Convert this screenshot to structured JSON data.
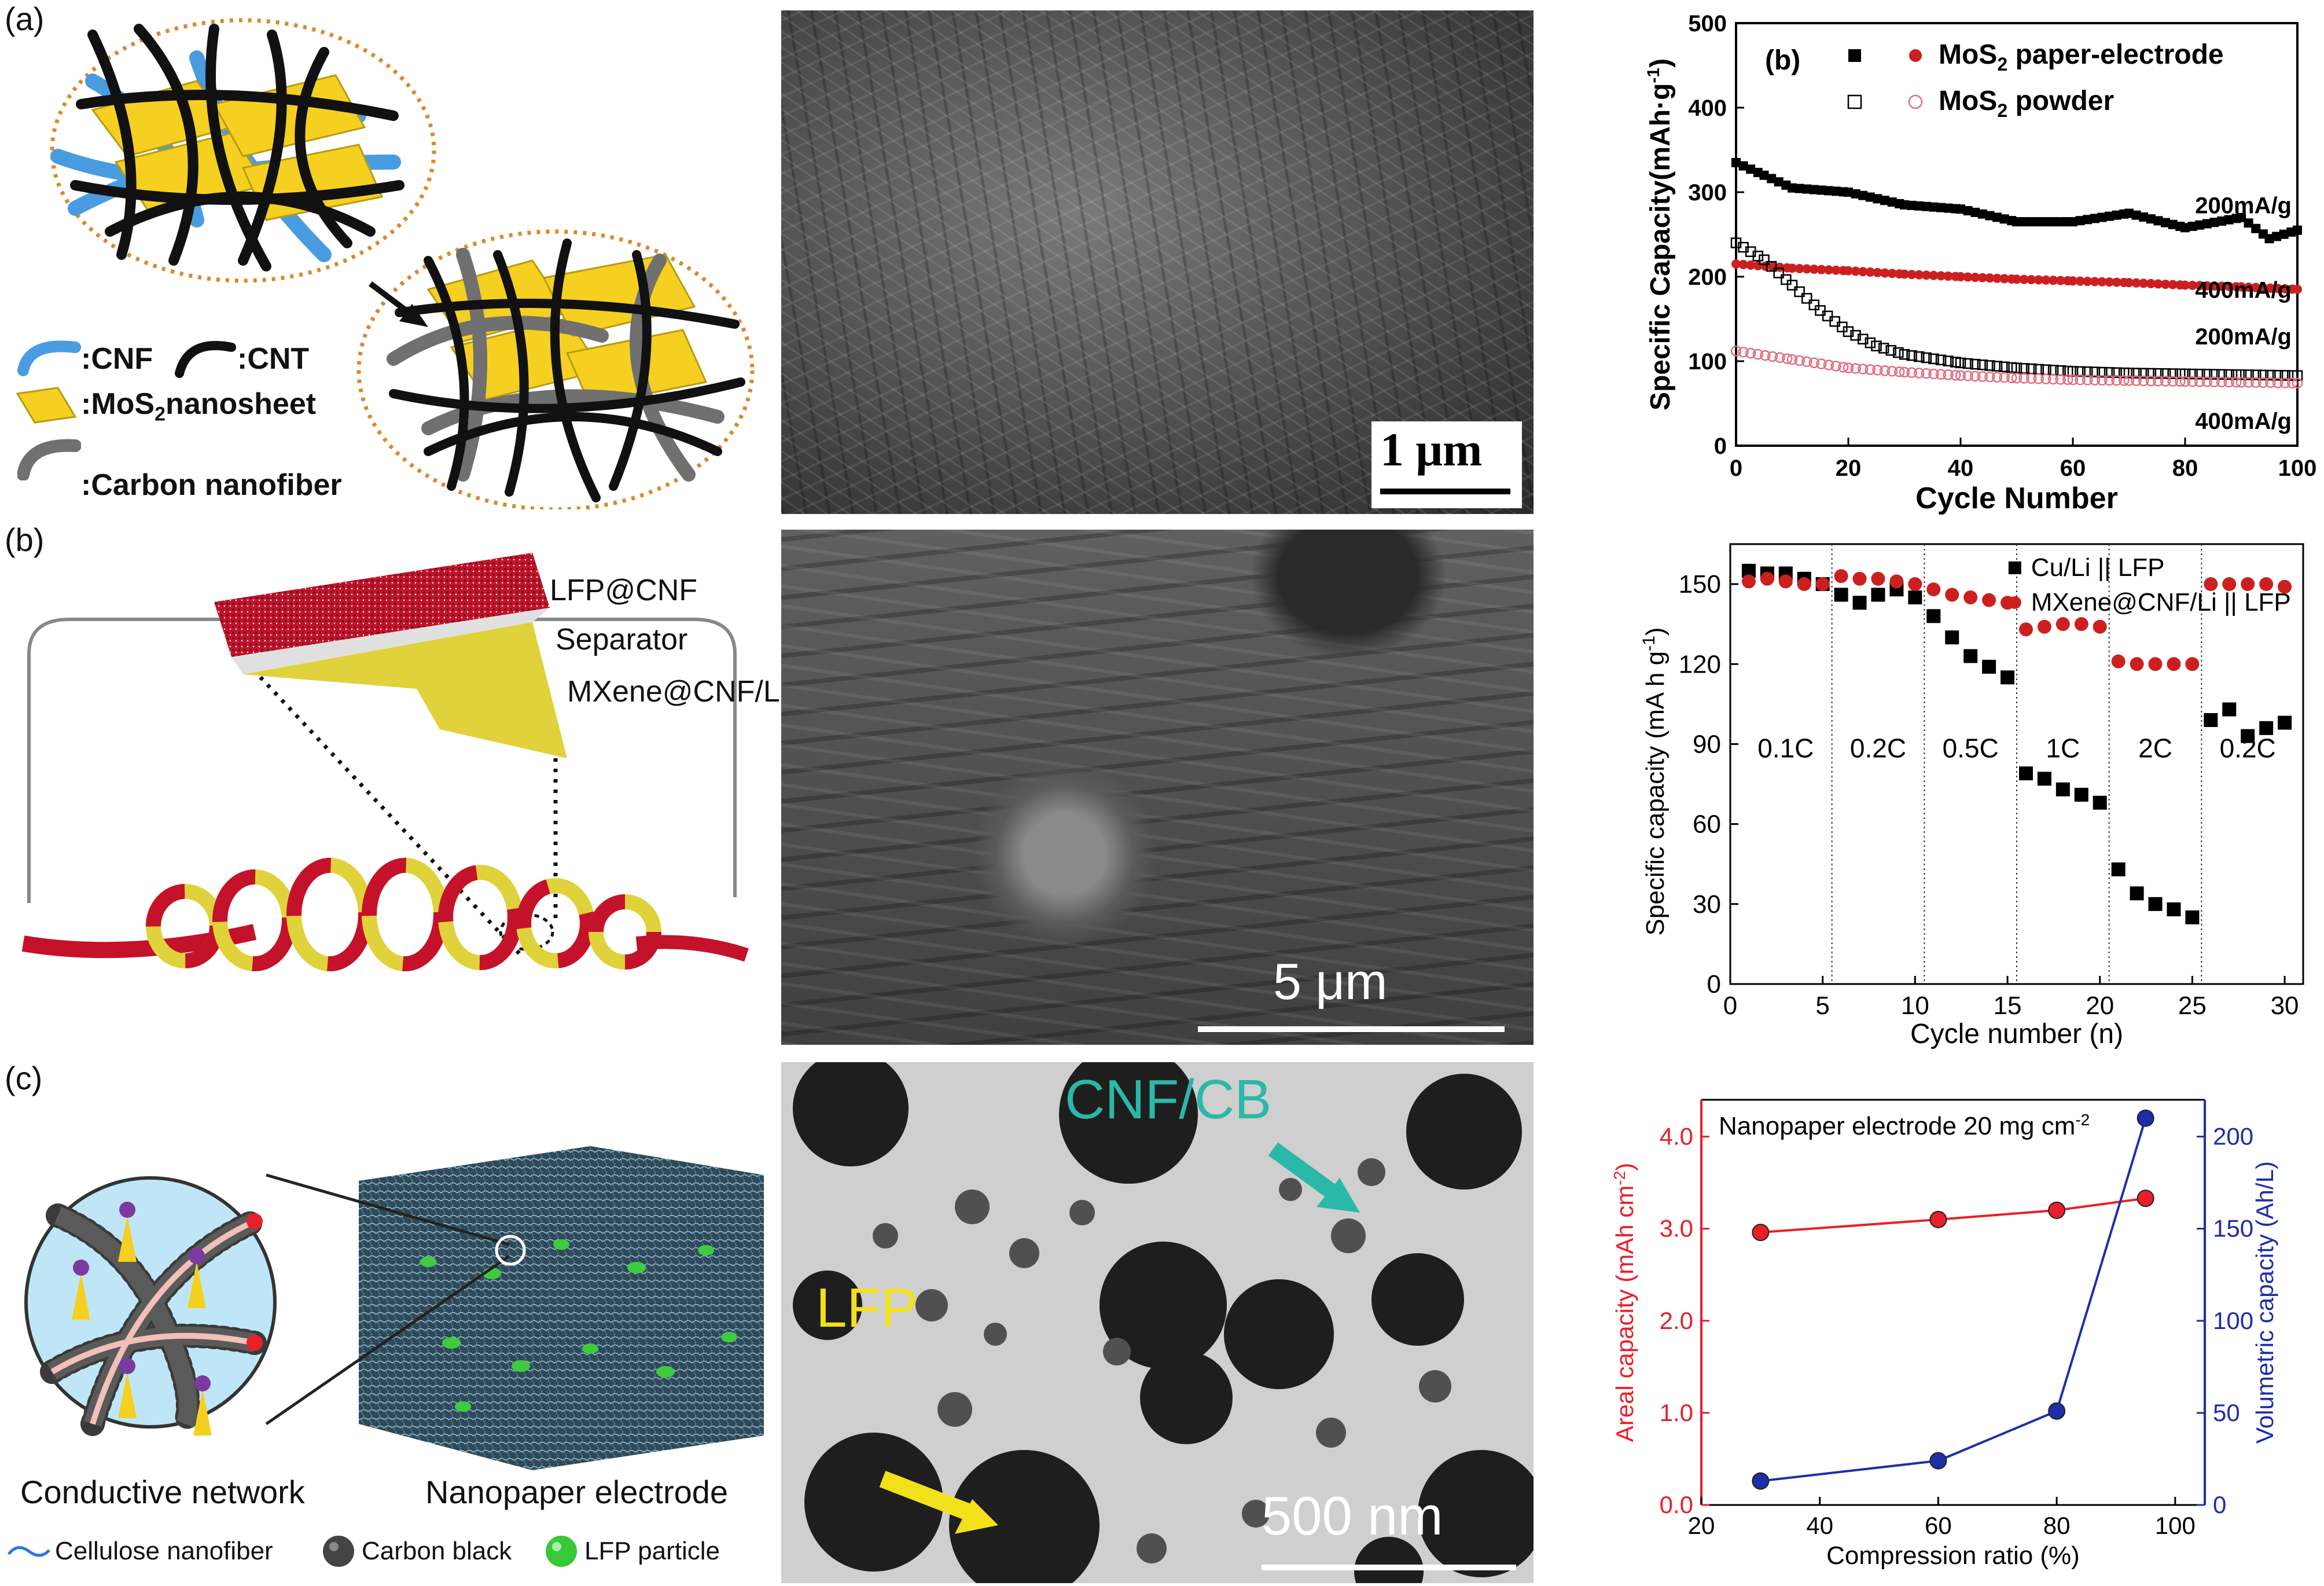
{
  "panels": {
    "a": {
      "letter": "(a)",
      "legend": {
        "cnf": ":CNF",
        "cnt": ":CNT",
        "mos2": ":MoS",
        "mos2_sub": "2",
        "mos2_rest": "nanosheet",
        "carbon_nanofiber": ":Carbon nanofiber"
      },
      "scale_bar": "1 μm"
    },
    "b": {
      "letter": "(b)",
      "labels": {
        "lfp": "LFP@CNF",
        "separator": "Separator",
        "mxene": "MXene@CNF/Li"
      },
      "scale_bar": "5  μm"
    },
    "c": {
      "letter": "(c)",
      "labels": {
        "conductive": "Conductive network",
        "nanopaper": "Nanopaper electrode",
        "cellulose": "Cellulose nanofiber",
        "carbon_black": "Carbon black",
        "lfp_particle": "LFP particle"
      },
      "tem_labels": {
        "cnf_cb": "CNF/CB",
        "lfp": "LFP"
      },
      "scale_bar": "500 nm"
    }
  },
  "chart_data": [
    {
      "id": "mos2-cycling",
      "type": "scatter",
      "panel_tag": "(b)",
      "xlabel": "Cycle Number",
      "ylabel": "Specific Capacity(mAh·g",
      "ylabel_sup": "-1",
      "ylabel_close": ")",
      "xlim": [
        0,
        100
      ],
      "ylim": [
        0,
        500
      ],
      "xticks": [
        "0",
        "20",
        "40",
        "60",
        "80",
        "100"
      ],
      "yticks": [
        "0",
        "100",
        "200",
        "300",
        "400",
        "500"
      ],
      "legend": [
        {
          "label": "MoS",
          "sub": "2",
          "rest": " paper-electrode",
          "markers": [
            "filled-square",
            "filled-circle"
          ]
        },
        {
          "label": "MoS",
          "sub": "2",
          "rest": " powder",
          "markers": [
            "open-square",
            "open-circle"
          ]
        }
      ],
      "annotations": [
        "200mA/g",
        "400mA/g",
        "200mA/g",
        "400mA/g"
      ],
      "series": [
        {
          "name": "paper 200mA/g",
          "color": "#000000",
          "marker": "filled-square",
          "x": [
            0,
            5,
            10,
            20,
            30,
            40,
            50,
            60,
            70,
            80,
            90,
            95,
            100
          ],
          "y": [
            335,
            320,
            305,
            300,
            285,
            280,
            265,
            265,
            275,
            258,
            270,
            245,
            255
          ]
        },
        {
          "name": "paper 400mA/g",
          "color": "#cc2020",
          "marker": "filled-circle",
          "x": [
            0,
            10,
            20,
            30,
            40,
            50,
            60,
            70,
            80,
            90,
            100
          ],
          "y": [
            215,
            210,
            207,
            203,
            200,
            197,
            195,
            193,
            190,
            188,
            185
          ]
        },
        {
          "name": "powder 200mA/g",
          "color": "#000000",
          "marker": "open-square",
          "x": [
            0,
            5,
            10,
            15,
            20,
            25,
            30,
            40,
            50,
            60,
            70,
            80,
            90,
            100
          ],
          "y": [
            240,
            220,
            190,
            160,
            135,
            118,
            108,
            98,
            92,
            88,
            86,
            85,
            84,
            83
          ]
        },
        {
          "name": "powder 400mA/g",
          "color": "#e07080",
          "marker": "open-circle",
          "x": [
            0,
            10,
            20,
            30,
            40,
            50,
            60,
            70,
            80,
            90,
            100
          ],
          "y": [
            112,
            102,
            92,
            87,
            83,
            80,
            78,
            77,
            76,
            75,
            74
          ]
        }
      ]
    },
    {
      "id": "rate-capability",
      "type": "scatter",
      "xlabel": "Cycle number (n)",
      "ylabel": "Specific capacity (mA h g",
      "ylabel_sup": "-1",
      "ylabel_close": ")",
      "xlim": [
        0,
        31
      ],
      "ylim": [
        0,
        165
      ],
      "xticks": [
        "0",
        "5",
        "10",
        "15",
        "20",
        "25",
        "30"
      ],
      "yticks": [
        "0",
        "30",
        "60",
        "90",
        "120",
        "150"
      ],
      "rate_labels": [
        "0.1C",
        "0.2C",
        "0.5C",
        "1C",
        "2C",
        "0.2C"
      ],
      "dividers": [
        5.5,
        10.5,
        15.5,
        20.5,
        25.5
      ],
      "series": [
        {
          "name": "Cu/Li || LFP",
          "color": "#000000",
          "marker": "filled-square",
          "x": [
            1,
            2,
            3,
            4,
            5,
            6,
            7,
            8,
            9,
            10,
            11,
            12,
            13,
            14,
            15,
            16,
            17,
            18,
            19,
            20,
            21,
            22,
            23,
            24,
            25,
            26,
            27,
            28,
            29,
            30
          ],
          "y": [
            155,
            154,
            154,
            152,
            150,
            146,
            143,
            146,
            148,
            145,
            138,
            130,
            123,
            119,
            115,
            79,
            77,
            73,
            71,
            68,
            43,
            34,
            30,
            28,
            25,
            99,
            103,
            93,
            96,
            98
          ]
        },
        {
          "name": "MXene@CNF/Li || LFP",
          "color": "#cc2020",
          "marker": "filled-circle",
          "x": [
            1,
            2,
            3,
            4,
            5,
            6,
            7,
            8,
            9,
            10,
            11,
            12,
            13,
            14,
            15,
            16,
            17,
            18,
            19,
            20,
            21,
            22,
            23,
            24,
            25,
            26,
            27,
            28,
            29,
            30
          ],
          "y": [
            151,
            152,
            151,
            150,
            150,
            153,
            152,
            152,
            151,
            150,
            148,
            146,
            145,
            144,
            143,
            133,
            134,
            135,
            135,
            134,
            121,
            120,
            120,
            120,
            120,
            150,
            150,
            150,
            150,
            149
          ]
        }
      ]
    },
    {
      "id": "compression",
      "type": "line",
      "annotation": "Nanopaper electrode 20 mg cm",
      "annotation_sup": "-2",
      "xlabel": "Compression ratio (%)",
      "ylabel_left": "Areal capacity (mAh cm",
      "ylabel_left_sup": "-2",
      "ylabel_left_close": ")",
      "ylabel_right": "Volumetric capacity (Ah/L)",
      "xlim": [
        20,
        105
      ],
      "ylim_left": [
        0,
        4.4
      ],
      "ylim_right": [
        0,
        220
      ],
      "xticks": [
        "20",
        "40",
        "60",
        "80",
        "100"
      ],
      "yticks_left": [
        "0.0",
        "1.0",
        "2.0",
        "3.0",
        "4.0"
      ],
      "yticks_right": [
        "0",
        "50",
        "100",
        "150",
        "200"
      ],
      "series": [
        {
          "name": "Areal",
          "axis": "left",
          "color": "#e8202a",
          "x": [
            30,
            60,
            80,
            95
          ],
          "y": [
            2.96,
            3.1,
            3.2,
            3.33
          ]
        },
        {
          "name": "Volumetric",
          "axis": "right",
          "color": "#1e2ea8",
          "x": [
            30,
            60,
            80,
            95
          ],
          "y": [
            13,
            24,
            51,
            210
          ]
        }
      ]
    }
  ]
}
